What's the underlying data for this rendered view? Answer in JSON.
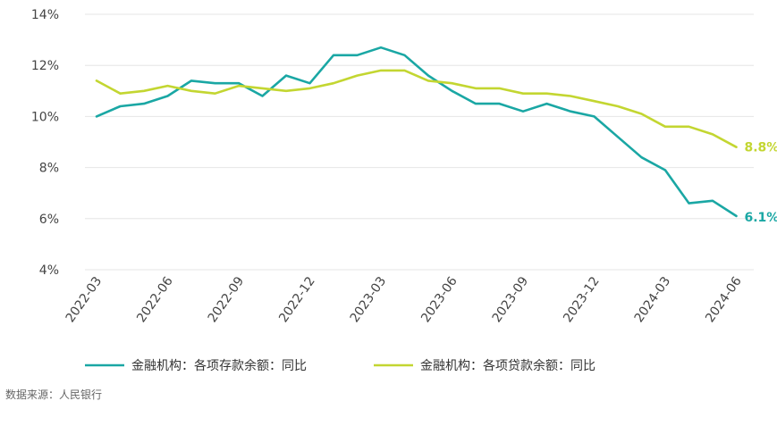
{
  "chart_data": {
    "type": "line",
    "title": "",
    "xlabel": "",
    "ylabel": "",
    "ylim": [
      4,
      14
    ],
    "yticks": [
      4,
      6,
      8,
      10,
      12,
      14
    ],
    "ytick_labels": [
      "4%",
      "6%",
      "8%",
      "10%",
      "12%",
      "14%"
    ],
    "grid": "horizontal",
    "legend_position": "bottom",
    "categories": [
      "2022-03",
      "2022-04",
      "2022-05",
      "2022-06",
      "2022-07",
      "2022-08",
      "2022-09",
      "2022-10",
      "2022-11",
      "2022-12",
      "2023-01",
      "2023-02",
      "2023-03",
      "2023-04",
      "2023-05",
      "2023-06",
      "2023-07",
      "2023-08",
      "2023-09",
      "2023-10",
      "2023-11",
      "2023-12",
      "2024-01",
      "2024-02",
      "2024-03",
      "2024-04",
      "2024-05",
      "2024-06"
    ],
    "xtick_labels": [
      "2022-03",
      "2022-06",
      "2022-09",
      "2022-12",
      "2023-03",
      "2023-06",
      "2023-09",
      "2023-12",
      "2024-03",
      "2024-06"
    ],
    "series": [
      {
        "name": "金融机构：各项存款余额：同比",
        "color": "#1aa7a4",
        "end_label": "6.1%",
        "values": [
          10.0,
          10.4,
          10.5,
          10.8,
          11.4,
          11.3,
          11.3,
          10.8,
          11.6,
          11.3,
          12.4,
          12.4,
          12.7,
          12.4,
          11.6,
          11.0,
          10.5,
          10.5,
          10.2,
          10.5,
          10.2,
          10.0,
          9.2,
          8.4,
          7.9,
          6.6,
          6.7,
          6.1
        ]
      },
      {
        "name": "金融机构：各项贷款余额：同比",
        "color": "#c3d631",
        "end_label": "8.8%",
        "values": [
          11.4,
          10.9,
          11.0,
          11.2,
          11.0,
          10.9,
          11.2,
          11.1,
          11.0,
          11.1,
          11.3,
          11.6,
          11.8,
          11.8,
          11.4,
          11.3,
          11.1,
          11.1,
          10.9,
          10.9,
          10.8,
          10.6,
          10.4,
          10.1,
          9.6,
          9.6,
          9.3,
          8.8
        ]
      }
    ],
    "source": "数据来源：人民银行"
  }
}
